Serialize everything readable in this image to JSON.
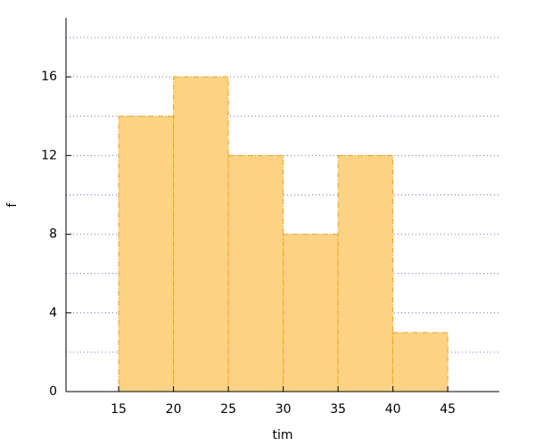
{
  "chart_data": {
    "type": "histogram",
    "x_label": "tim",
    "y_label": "f",
    "bins": [
      15,
      20,
      25,
      30,
      35,
      40,
      45
    ],
    "values": [
      14,
      16,
      12,
      8,
      12,
      3
    ],
    "color": "#fdd283",
    "edge_color": "#eaa31e",
    "xlim": [
      10.2,
      49.7
    ],
    "xticks": [
      15,
      20,
      25,
      30,
      35,
      40,
      45
    ],
    "ylim": [
      0,
      19
    ],
    "yticks": [
      0,
      4,
      8,
      12,
      16
    ],
    "yminor_ticks": [
      2,
      6,
      10,
      14,
      18
    ],
    "grid": true,
    "grid_color": "#6b6bd6"
  }
}
